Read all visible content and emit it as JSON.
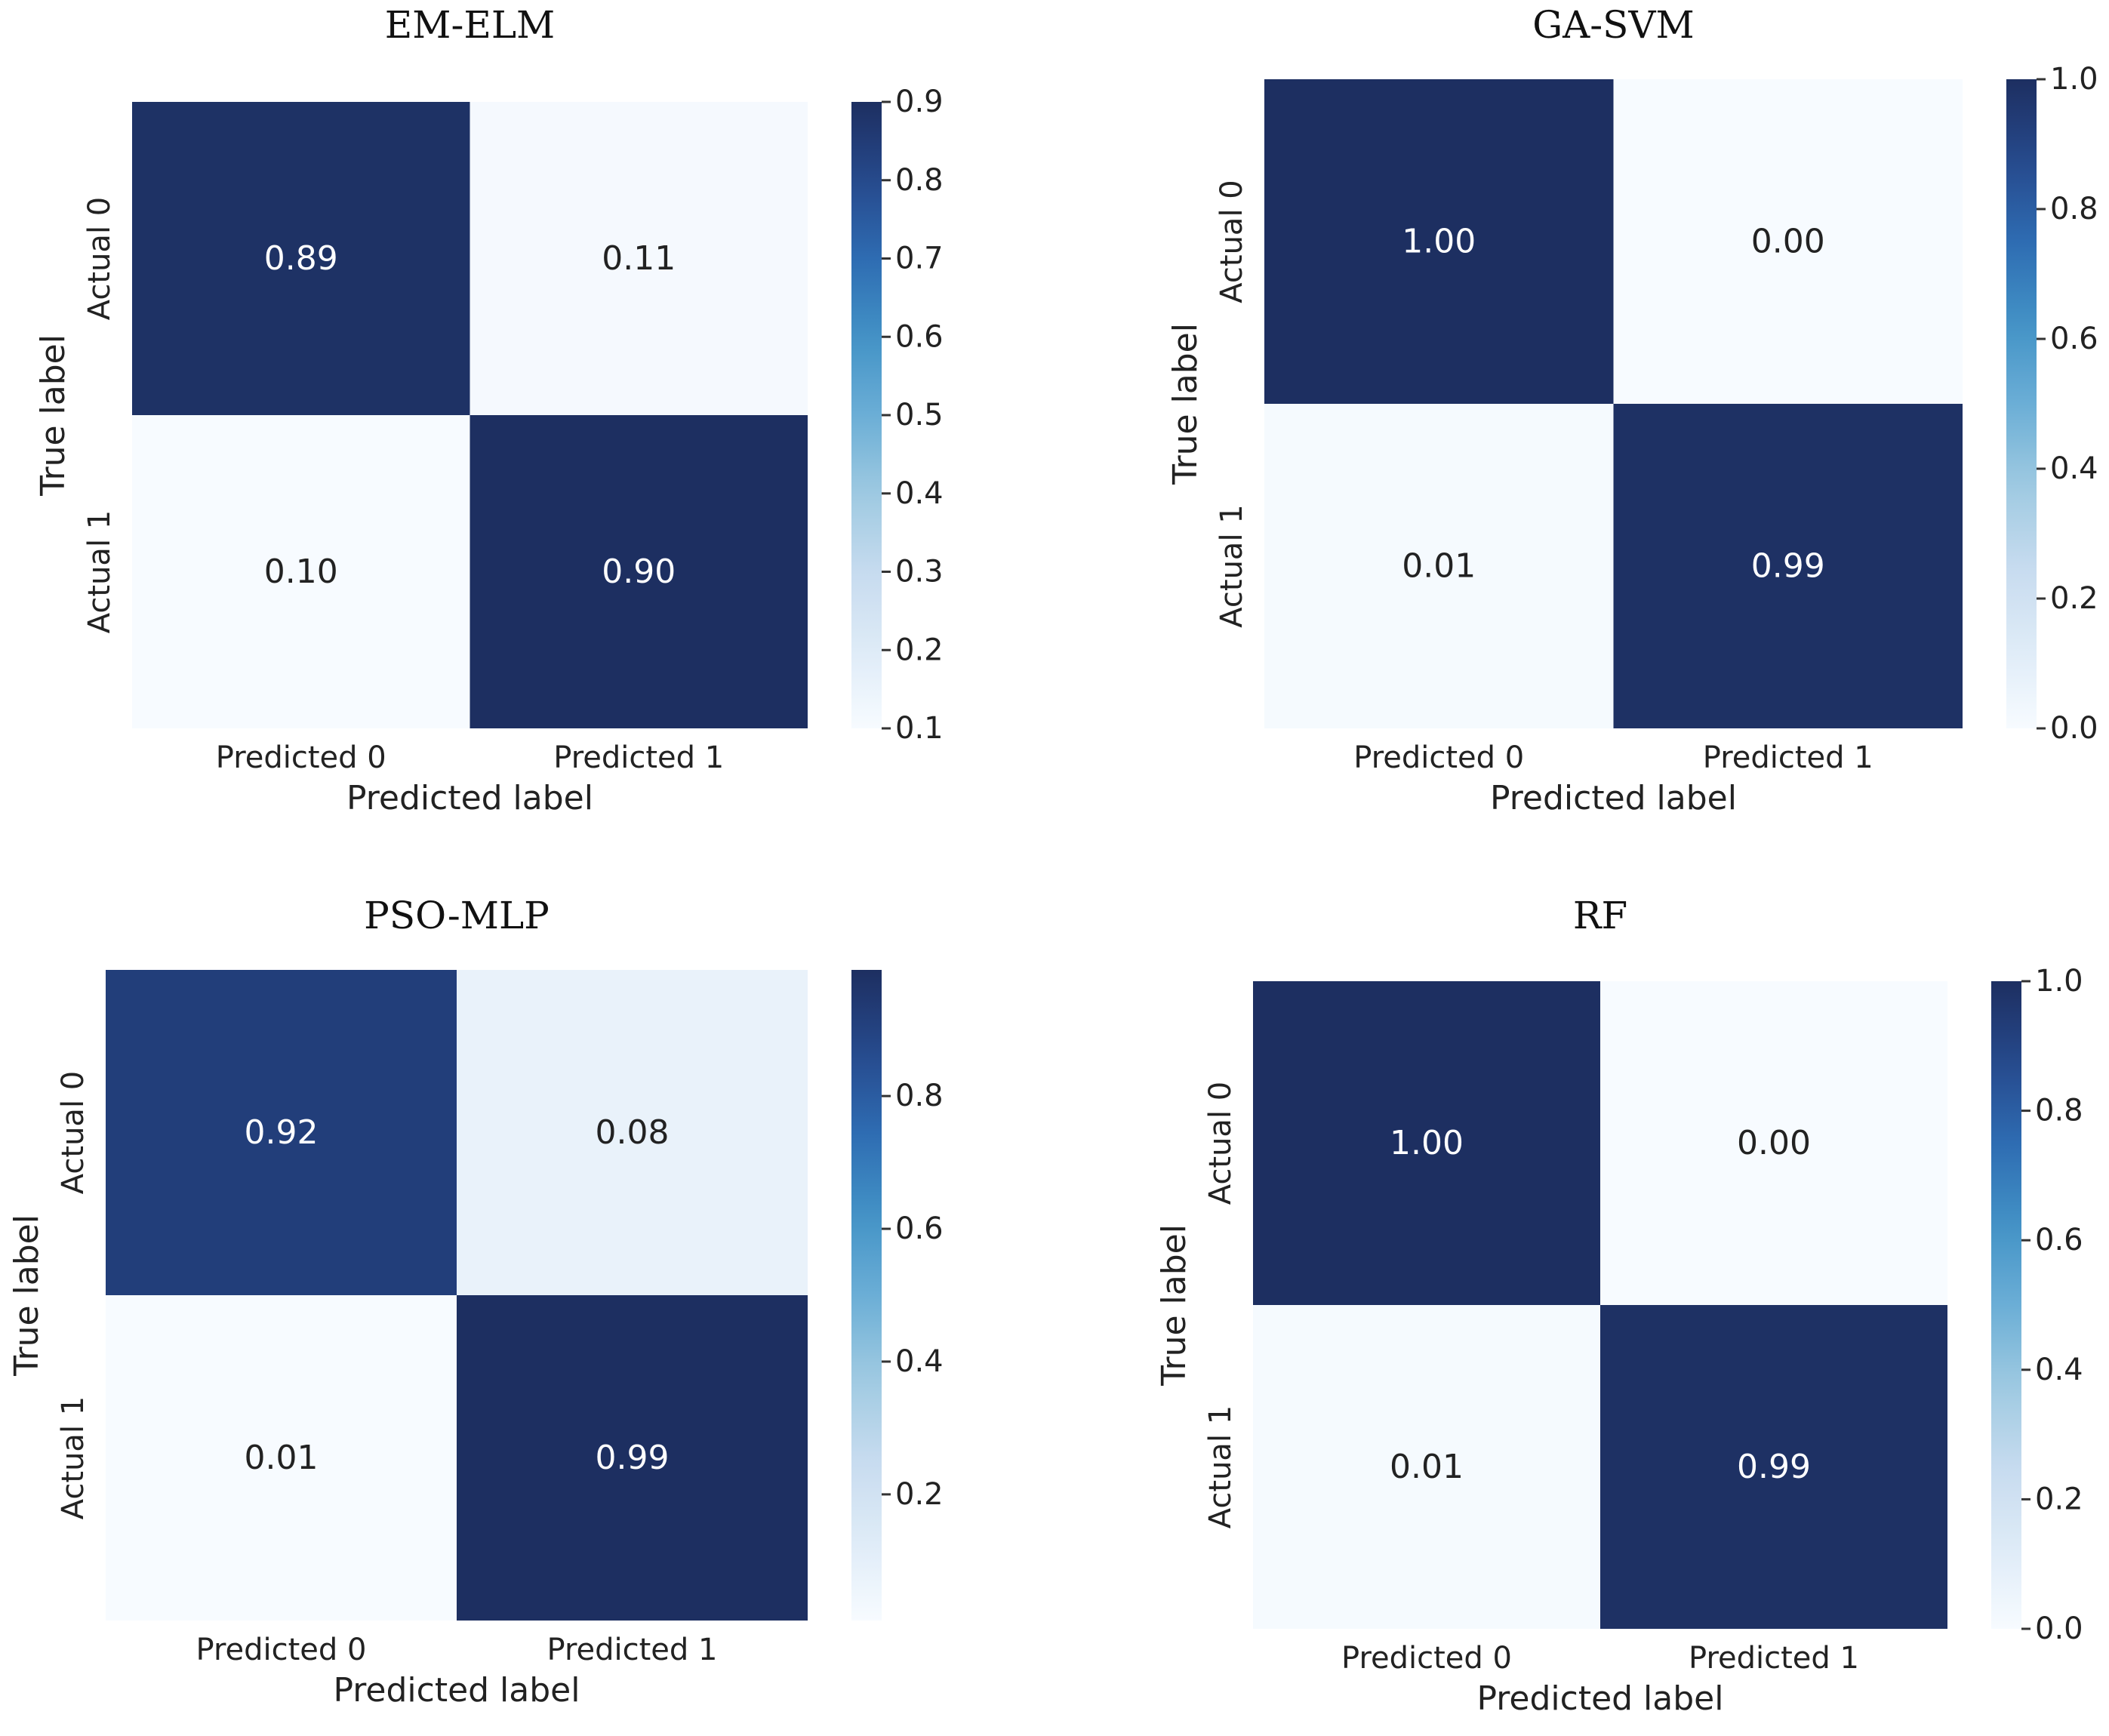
{
  "chart_data": [
    {
      "type": "heatmap",
      "title": "EM-ELM",
      "xlabel": "Predicted label",
      "ylabel": "True label",
      "x_categories": [
        "Predicted 0",
        "Predicted 1"
      ],
      "y_categories": [
        "Actual 0",
        "Actual 1"
      ],
      "values": [
        [
          0.89,
          0.11
        ],
        [
          0.1,
          0.9
        ]
      ],
      "cell_labels": [
        [
          "0.89",
          "0.11"
        ],
        [
          "0.10",
          "0.90"
        ]
      ],
      "colormap": "Blues",
      "colorbar": {
        "vmin": 0.1,
        "vmax": 0.9,
        "ticks": [
          0.1,
          0.2,
          0.3,
          0.4,
          0.5,
          0.6,
          0.7,
          0.8,
          0.9
        ],
        "tick_labels": [
          "0.1",
          "0.2",
          "0.3",
          "0.4",
          "0.5",
          "0.6",
          "0.7",
          "0.8",
          "0.9"
        ]
      }
    },
    {
      "type": "heatmap",
      "title": "GA-SVM",
      "xlabel": "Predicted label",
      "ylabel": "True label",
      "x_categories": [
        "Predicted 0",
        "Predicted 1"
      ],
      "y_categories": [
        "Actual 0",
        "Actual 1"
      ],
      "values": [
        [
          1.0,
          0.0
        ],
        [
          0.01,
          0.99
        ]
      ],
      "cell_labels": [
        [
          "1.00",
          "0.00"
        ],
        [
          "0.01",
          "0.99"
        ]
      ],
      "colormap": "Blues",
      "colorbar": {
        "vmin": 0.0,
        "vmax": 1.0,
        "ticks": [
          0.0,
          0.2,
          0.4,
          0.6,
          0.8,
          1.0
        ],
        "tick_labels": [
          "0.0",
          "0.2",
          "0.4",
          "0.6",
          "0.8",
          "1.0"
        ]
      }
    },
    {
      "type": "heatmap",
      "title": "PSO-MLP",
      "xlabel": "Predicted label",
      "ylabel": "True label",
      "x_categories": [
        "Predicted 0",
        "Predicted 1"
      ],
      "y_categories": [
        "Actual 0",
        "Actual 1"
      ],
      "values": [
        [
          0.92,
          0.08
        ],
        [
          0.01,
          0.99
        ]
      ],
      "cell_labels": [
        [
          "0.92",
          "0.08"
        ],
        [
          "0.01",
          "0.99"
        ]
      ],
      "colormap": "Blues",
      "colorbar": {
        "vmin": 0.01,
        "vmax": 0.99,
        "ticks": [
          0.2,
          0.4,
          0.6,
          0.8
        ],
        "tick_labels": [
          "0.2",
          "0.4",
          "0.6",
          "0.8"
        ]
      }
    },
    {
      "type": "heatmap",
      "title": "RF",
      "xlabel": "Predicted label",
      "ylabel": "True label",
      "x_categories": [
        "Predicted 0",
        "Predicted 1"
      ],
      "y_categories": [
        "Actual 0",
        "Actual 1"
      ],
      "values": [
        [
          1.0,
          0.0
        ],
        [
          0.01,
          0.99
        ]
      ],
      "cell_labels": [
        [
          "1.00",
          "0.00"
        ],
        [
          "0.01",
          "0.99"
        ]
      ],
      "colormap": "Blues",
      "colorbar": {
        "vmin": 0.0,
        "vmax": 1.0,
        "ticks": [
          0.0,
          0.2,
          0.4,
          0.6,
          0.8,
          1.0
        ],
        "tick_labels": [
          "0.0",
          "0.2",
          "0.4",
          "0.6",
          "0.8",
          "1.0"
        ]
      }
    }
  ]
}
